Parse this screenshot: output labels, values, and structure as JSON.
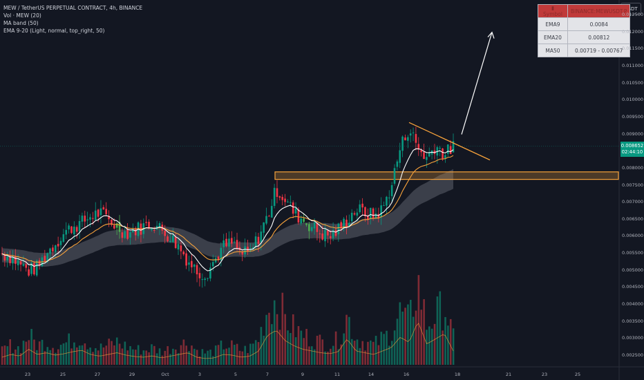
{
  "header": {
    "pair": "MEW / TetherUS PERPETUAL CONTRACT, 4h, BINANCE",
    "vol": "Vol · MEW (20)",
    "ma_band": "MA band (50)",
    "ema": "EMA 9-20 (Light, normal, top_right, 50)"
  },
  "currency": "USDT",
  "info_table": [
    [
      "Symbol",
      "BINANCE:MEWUSDT.P"
    ],
    [
      "EMA9",
      "0.0084"
    ],
    [
      "EMA20",
      "0.00812"
    ],
    [
      "MA50",
      "0.00719 - 0.00767"
    ]
  ],
  "price_tag": {
    "price": "0.008652",
    "timer": "02:44:10"
  },
  "colors": {
    "background": "#131722",
    "up": "#089981",
    "down": "#f23645",
    "ema9": "#ffffff",
    "ema20": "#f7a23b",
    "band": "#5d606b",
    "signal_up": "#4caf50",
    "signal_down": "#f06c7a",
    "zone": "#f7a23b",
    "trendline": "#f7a23b",
    "arrow": "#ffffff"
  },
  "chart_data": {
    "type": "candlestick",
    "timeframe": "4h",
    "ylim": [
      0.0023,
      0.013
    ],
    "y_ticks": [
      "0.002500",
      "0.003000",
      "0.003500",
      "0.004000",
      "0.004500",
      "0.005000",
      "0.005500",
      "0.006000",
      "0.006500",
      "0.007000",
      "0.007500",
      "0.008000",
      "0.008500",
      "0.009000",
      "0.009500",
      "0.010000",
      "0.010500",
      "0.011000",
      "0.011500",
      "0.012000",
      "0.012500"
    ],
    "x_labels": [
      "23",
      "25",
      "27",
      "29",
      "Oct",
      "3",
      "5",
      "7",
      "9",
      "11",
      "14",
      "16",
      "18",
      "21",
      "23",
      "25"
    ],
    "close_path": [
      0.0055,
      0.0054,
      0.0052,
      0.005,
      0.0051,
      0.0055,
      0.0058,
      0.0061,
      0.0063,
      0.0064,
      0.0066,
      0.0067,
      0.0065,
      0.0063,
      0.0061,
      0.0062,
      0.0063,
      0.0064,
      0.0062,
      0.006,
      0.0057,
      0.0053,
      0.005,
      0.0049,
      0.0053,
      0.0057,
      0.0058,
      0.0055,
      0.0055,
      0.006,
      0.0066,
      0.0074,
      0.0071,
      0.0067,
      0.0065,
      0.0063,
      0.0061,
      0.006,
      0.0062,
      0.0065,
      0.0068,
      0.0067,
      0.0066,
      0.0068,
      0.0075,
      0.0086,
      0.0092,
      0.0086,
      0.0083,
      0.0087,
      0.0084,
      0.00865
    ],
    "volume_path": [
      0.22,
      0.3,
      0.25,
      0.45,
      0.3,
      0.35,
      0.28,
      0.32,
      0.38,
      0.42,
      0.3,
      0.25,
      0.3,
      0.35,
      0.28,
      0.24,
      0.22,
      0.26,
      0.2,
      0.25,
      0.3,
      0.35,
      0.22,
      0.18,
      0.2,
      0.3,
      0.28,
      0.22,
      0.25,
      0.4,
      0.85,
      1.0,
      0.7,
      0.55,
      0.45,
      0.4,
      0.35,
      0.32,
      0.38,
      0.75,
      0.4,
      0.35,
      0.3,
      0.4,
      0.5,
      0.8,
      0.65,
      1.25,
      0.6,
      0.75,
      0.9,
      0.4
    ],
    "resistance_zone": [
      0.00768,
      0.0079
    ],
    "descending_trendline": {
      "from": "Oct 15",
      "to": "Oct 17",
      "start": 0.00935,
      "end": 0.00825
    },
    "projection": {
      "from": 0.009,
      "to": 0.012
    },
    "ema9_last": 0.0084,
    "ema20_last": 0.00812,
    "ma50_band": [
      0.00719,
      0.00767
    ],
    "last_price": 0.008652
  }
}
